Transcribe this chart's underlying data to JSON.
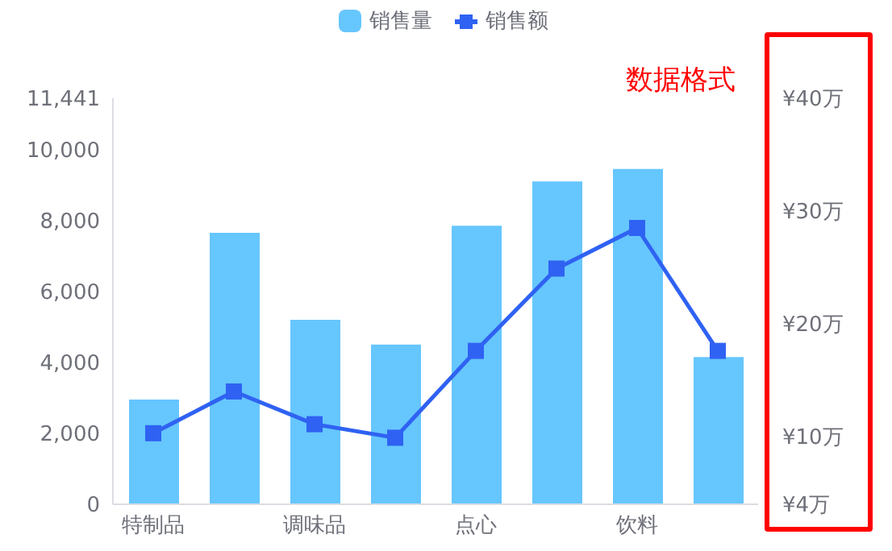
{
  "chart_data": {
    "type": "bar",
    "categories": [
      "特制品",
      null,
      "调味品",
      null,
      "点心",
      null,
      "饮料",
      null
    ],
    "series": [
      {
        "name": "销售量",
        "color": "#66c6fe",
        "values": [
          2950,
          7650,
          5200,
          4500,
          7850,
          9100,
          9450,
          4150
        ]
      },
      {
        "name": "销售额",
        "type": "line",
        "axis": "y2",
        "color": "#2f62f2",
        "marker": "square",
        "values": [
          10.3,
          14,
          11.1,
          9.9,
          17.6,
          24.9,
          28.5,
          17.6
        ]
      }
    ],
    "ylim": [
      0,
      11441
    ],
    "yticks": [
      0,
      {
        "value": 2000,
        "label": "2,000"
      },
      {
        "value": 4000,
        "label": "4,000"
      },
      {
        "value": 6000,
        "label": "6,000"
      },
      {
        "value": 8000,
        "label": "8,000"
      },
      {
        "value": 10000,
        "label": "10,000"
      },
      {
        "value": 11441,
        "label": "11,441"
      }
    ],
    "y2lim": [
      4,
      40
    ],
    "y2ticks": [
      {
        "value": 4,
        "label": "¥4万"
      },
      {
        "value": 10,
        "label": "¥10万"
      },
      {
        "value": 20,
        "label": "¥20万"
      },
      {
        "value": 30,
        "label": "¥30万"
      },
      {
        "value": 40,
        "label": "¥40万"
      }
    ],
    "annotations": [
      "数据格式"
    ],
    "legend": "top",
    "grid": false
  }
}
